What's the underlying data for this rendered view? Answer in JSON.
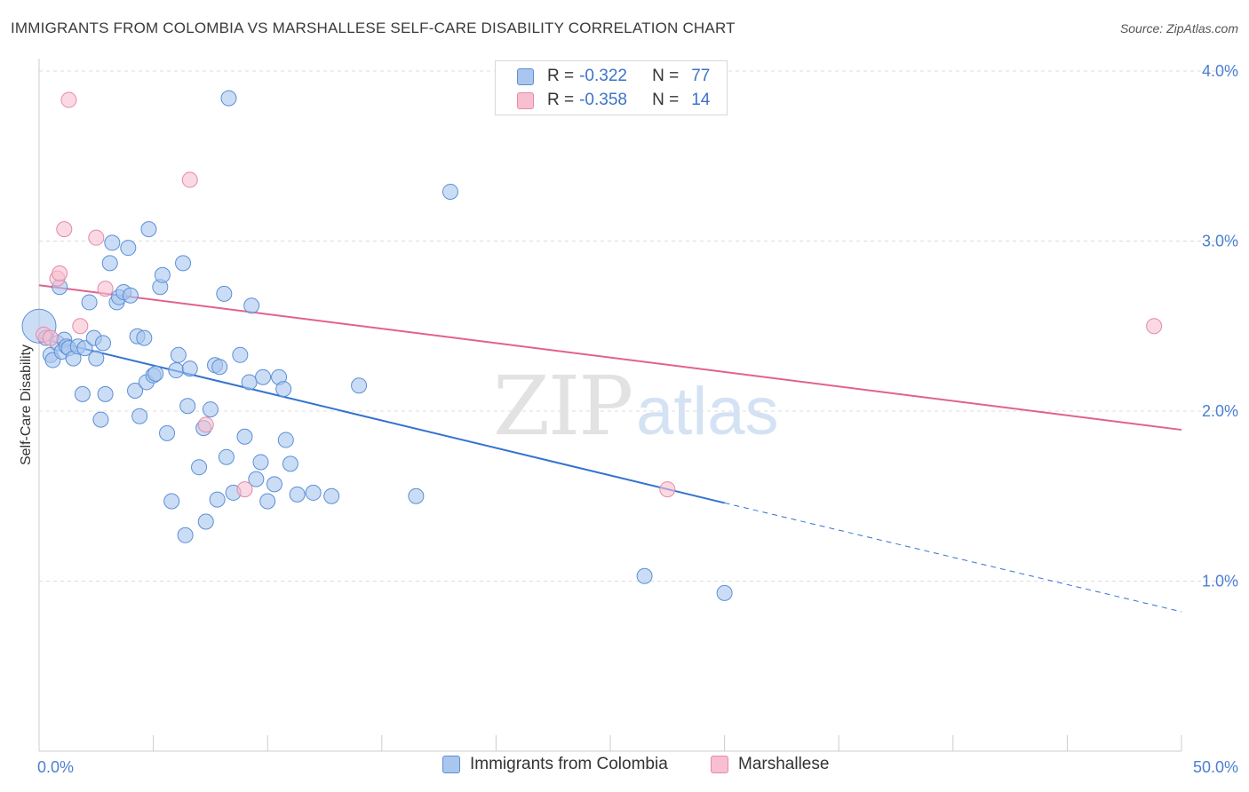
{
  "header": {
    "title": "IMMIGRANTS FROM COLOMBIA VS MARSHALLESE SELF-CARE DISABILITY CORRELATION CHART",
    "source": "Source: ZipAtlas.com"
  },
  "watermark": {
    "part1": "ZIP",
    "part2": "atlas"
  },
  "legend": {
    "rows": [
      {
        "r_label": "R =",
        "r_value": "-0.322",
        "n_label": "N =",
        "n_value": "77"
      },
      {
        "r_label": "R =",
        "r_value": "-0.358",
        "n_label": "N =",
        "n_value": "14"
      }
    ]
  },
  "bottom_legend": {
    "items": [
      {
        "label": "Immigrants from Colombia"
      },
      {
        "label": "Marshallese"
      }
    ]
  },
  "colors": {
    "blue_fill": "#a9c6ef",
    "blue_stroke": "#5b8fd6",
    "blue_line": "#3373d0",
    "pink_fill": "#f7bfd0",
    "pink_stroke": "#e58aa8",
    "pink_line": "#e0628d",
    "grid": "#dcdcdc",
    "axis": "#cccccc"
  },
  "chart_data": {
    "type": "scatter",
    "title": "IMMIGRANTS FROM COLOMBIA VS MARSHALLESE SELF-CARE DISABILITY CORRELATION CHART",
    "xlabel": "",
    "ylabel": "Self-Care Disability",
    "xlim": [
      0,
      50
    ],
    "ylim": [
      0,
      4.2
    ],
    "x_tick_labels": [
      "0.0%",
      "50.0%"
    ],
    "y_ticks": [
      {
        "value": 1.0,
        "label": "1.0%"
      },
      {
        "value": 2.0,
        "label": "2.0%"
      },
      {
        "value": 3.0,
        "label": "3.0%"
      },
      {
        "value": 4.0,
        "label": "4.0%"
      }
    ],
    "series": [
      {
        "name": "Immigrants from Colombia",
        "r": -0.322,
        "n": 77,
        "trend": {
          "x0": 0.0,
          "y0": 2.43,
          "x1": 30.0,
          "y1": 1.46,
          "dash_x1": 50.0,
          "dash_y1": 0.82
        },
        "points": [
          [
            0.0,
            2.5
          ],
          [
            0.3,
            2.43
          ],
          [
            0.5,
            2.33
          ],
          [
            0.6,
            2.3
          ],
          [
            0.8,
            2.4
          ],
          [
            0.9,
            2.73
          ],
          [
            1.0,
            2.35
          ],
          [
            1.1,
            2.42
          ],
          [
            1.2,
            2.38
          ],
          [
            1.3,
            2.37
          ],
          [
            1.5,
            2.31
          ],
          [
            1.7,
            2.38
          ],
          [
            1.9,
            2.1
          ],
          [
            2.0,
            2.37
          ],
          [
            2.2,
            2.64
          ],
          [
            2.4,
            2.43
          ],
          [
            2.5,
            2.31
          ],
          [
            2.7,
            1.95
          ],
          [
            2.8,
            2.4
          ],
          [
            2.9,
            2.1
          ],
          [
            3.1,
            2.87
          ],
          [
            3.2,
            2.99
          ],
          [
            3.4,
            2.64
          ],
          [
            3.5,
            2.67
          ],
          [
            3.7,
            2.7
          ],
          [
            3.9,
            2.96
          ],
          [
            4.0,
            2.68
          ],
          [
            4.2,
            2.12
          ],
          [
            4.3,
            2.44
          ],
          [
            4.4,
            1.97
          ],
          [
            4.6,
            2.43
          ],
          [
            4.7,
            2.17
          ],
          [
            4.8,
            3.07
          ],
          [
            5.0,
            2.21
          ],
          [
            5.1,
            2.22
          ],
          [
            5.3,
            2.73
          ],
          [
            5.4,
            2.8
          ],
          [
            5.6,
            1.87
          ],
          [
            5.8,
            1.47
          ],
          [
            6.0,
            2.24
          ],
          [
            6.1,
            2.33
          ],
          [
            6.3,
            2.87
          ],
          [
            6.4,
            1.27
          ],
          [
            6.5,
            2.03
          ],
          [
            6.6,
            2.25
          ],
          [
            7.0,
            1.67
          ],
          [
            7.2,
            1.9
          ],
          [
            7.3,
            1.35
          ],
          [
            7.5,
            2.01
          ],
          [
            7.7,
            2.27
          ],
          [
            7.8,
            1.48
          ],
          [
            7.9,
            2.26
          ],
          [
            8.1,
            2.69
          ],
          [
            8.2,
            1.73
          ],
          [
            8.3,
            3.84
          ],
          [
            8.5,
            1.52
          ],
          [
            8.8,
            2.33
          ],
          [
            9.0,
            1.85
          ],
          [
            9.2,
            2.17
          ],
          [
            9.3,
            2.62
          ],
          [
            9.5,
            1.6
          ],
          [
            9.7,
            1.7
          ],
          [
            9.8,
            2.2
          ],
          [
            10.0,
            1.47
          ],
          [
            10.3,
            1.57
          ],
          [
            10.5,
            2.2
          ],
          [
            10.7,
            2.13
          ],
          [
            10.8,
            1.83
          ],
          [
            11.0,
            1.69
          ],
          [
            11.3,
            1.51
          ],
          [
            12.0,
            1.52
          ],
          [
            12.8,
            1.5
          ],
          [
            14.0,
            2.15
          ],
          [
            16.5,
            1.5
          ],
          [
            18.0,
            3.29
          ],
          [
            26.5,
            1.03
          ],
          [
            30.0,
            0.93
          ]
        ]
      },
      {
        "name": "Marshallese",
        "r": -0.358,
        "n": 14,
        "trend": {
          "x0": 0.0,
          "y0": 2.74,
          "x1": 50.0,
          "y1": 1.89
        },
        "points": [
          [
            0.2,
            2.45
          ],
          [
            0.5,
            2.43
          ],
          [
            0.8,
            2.78
          ],
          [
            0.9,
            2.81
          ],
          [
            1.1,
            3.07
          ],
          [
            1.3,
            3.83
          ],
          [
            1.8,
            2.5
          ],
          [
            2.5,
            3.02
          ],
          [
            2.9,
            2.72
          ],
          [
            6.6,
            3.36
          ],
          [
            7.3,
            1.92
          ],
          [
            9.0,
            1.54
          ],
          [
            27.5,
            1.54
          ],
          [
            48.8,
            2.5
          ]
        ]
      }
    ]
  }
}
